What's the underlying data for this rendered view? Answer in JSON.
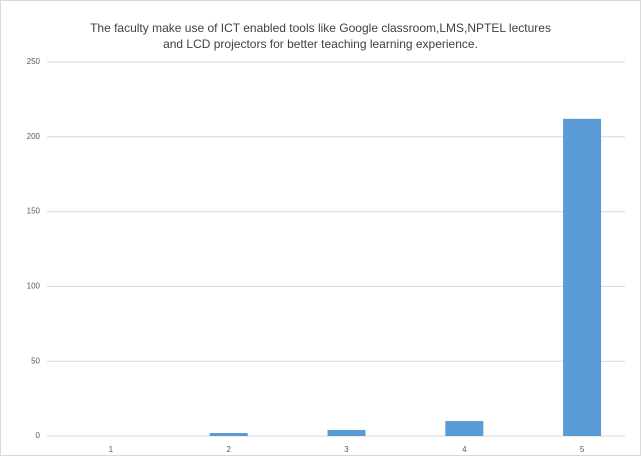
{
  "chart_data": {
    "type": "bar",
    "title": "The faculty make use of ICT enabled tools like Google classroom,LMS,NPTEL lectures\nand LCD projectors for better teaching learning experience.",
    "categories": [
      "1",
      "2",
      "3",
      "4",
      "5"
    ],
    "values": [
      0,
      2,
      4,
      10,
      212
    ],
    "color": "#5b9bd5",
    "ylim": [
      0,
      250
    ],
    "yticks": [
      0,
      50,
      100,
      150,
      200,
      250
    ],
    "grid": true
  }
}
